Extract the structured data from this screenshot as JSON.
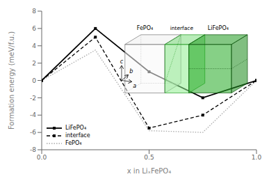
{
  "chart_data": {
    "type": "line",
    "xlabel": "x in LiₓFePO₄",
    "ylabel": "Formation energy (meV/f.u.)",
    "x": [
      0,
      0.25,
      0.5,
      0.75,
      1.0
    ],
    "xlim": [
      0,
      1
    ],
    "xticks": [
      {
        "value": 0,
        "label": "0.0"
      },
      {
        "value": 0.5,
        "label": "0.5"
      },
      {
        "value": 1,
        "label": "1.0"
      }
    ],
    "ylim": [
      -8,
      8
    ],
    "yticks": [
      -8,
      -6,
      -4,
      -2,
      0,
      2,
      4,
      6,
      8
    ],
    "grid": false,
    "legend": "lower left",
    "series": [
      {
        "name": "LiFePO₄",
        "color": "#000000",
        "line_style": "solid",
        "marker": "square",
        "values": [
          0,
          6.0,
          1.0,
          -2.0,
          0
        ]
      },
      {
        "name": "interface",
        "color": "#000000",
        "line_style": "dashed",
        "marker": "square",
        "values": [
          0,
          5.0,
          -5.5,
          -4.0,
          0
        ]
      },
      {
        "name": "FePO₄",
        "color": "#aaaaaa",
        "line_style": "dotted",
        "marker": "none",
        "values": [
          0,
          3.5,
          -5.8,
          -6.0,
          0
        ]
      }
    ],
    "annotations": [
      "FePO₄",
      "interface",
      "LiFePO₄",
      "c",
      "b",
      "a"
    ]
  }
}
